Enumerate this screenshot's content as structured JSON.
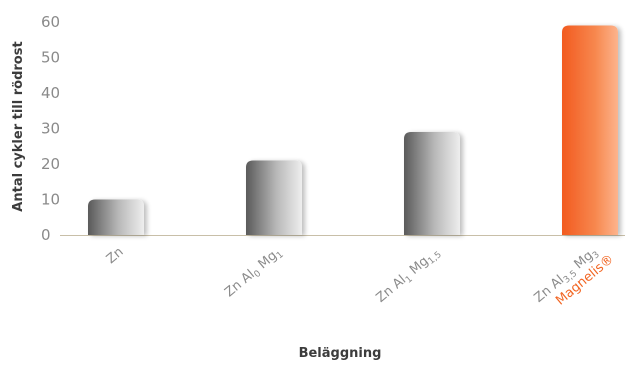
{
  "chart_data": {
    "type": "bar",
    "xlabel": "Beläggning",
    "ylabel": "Antal cykler till rödrost",
    "ylim": [
      0,
      60
    ],
    "yticks": [
      0,
      10,
      20,
      30,
      40,
      50,
      60
    ],
    "grid": false,
    "categories": [
      "Zn",
      "Zn Al0 Mg1",
      "Zn Al1 Mg1,5",
      "Zn Al3,5 Mg3 Magnelis®"
    ],
    "category_parts": [
      [
        {
          "t": "Zn"
        }
      ],
      [
        {
          "t": "Zn Al"
        },
        {
          "t": "0",
          "sub": true
        },
        {
          "t": " Mg"
        },
        {
          "t": "1",
          "sub": true
        }
      ],
      [
        {
          "t": "Zn Al"
        },
        {
          "t": "1",
          "sub": true
        },
        {
          "t": " Mg"
        },
        {
          "t": "1,5",
          "sub": true
        }
      ],
      [
        {
          "t": "Zn Al"
        },
        {
          "t": "3,5",
          "sub": true
        },
        {
          "t": " Mg"
        },
        {
          "t": "3",
          "sub": true
        }
      ]
    ],
    "highlight_label": "Magnelis®",
    "values": [
      10,
      21,
      29,
      59
    ],
    "colors": {
      "gray_dark": "#5a5a5a",
      "gray_light": "#eeeeee",
      "orange_dark": "#f25a1f",
      "orange_light": "#fdb48d",
      "highlight_text": "#f26522",
      "axis": "#c8bfa8",
      "tick_text": "#8a8a8a",
      "title_text": "#3c3c3c"
    }
  }
}
